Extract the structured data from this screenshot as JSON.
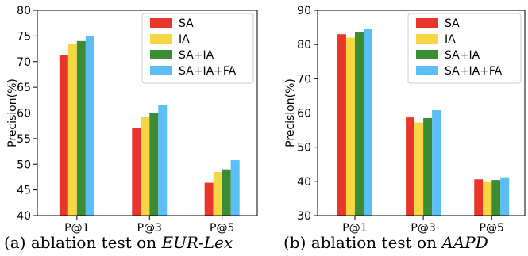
{
  "chart_data": [
    {
      "type": "bar",
      "title": "",
      "caption": "(a) ablation test on ",
      "caption_italic": "EUR-Lex",
      "categories": [
        "P@1",
        "P@3",
        "P@5"
      ],
      "ylabel": "Precision(%)",
      "xlabel": "",
      "ylim": [
        40,
        80
      ],
      "yticks": [
        40,
        45,
        50,
        55,
        60,
        65,
        70,
        75,
        80
      ],
      "legend_position": "top-right",
      "series": [
        {
          "name": "SA",
          "color": "#e8372a",
          "values": [
            71.2,
            57.1,
            46.4
          ]
        },
        {
          "name": "IA",
          "color": "#f6d743",
          "values": [
            73.4,
            59.2,
            48.5
          ]
        },
        {
          "name": "SA+IA",
          "color": "#3a8c35",
          "values": [
            74.0,
            60.0,
            49.0
          ]
        },
        {
          "name": "SA+IA+FA",
          "color": "#5bbef4",
          "values": [
            75.0,
            61.5,
            50.8
          ]
        }
      ]
    },
    {
      "type": "bar",
      "title": "",
      "caption": "(b) ablation test on ",
      "caption_italic": "AAPD",
      "categories": [
        "P@1",
        "P@3",
        "P@5"
      ],
      "ylabel": "Precision(%)",
      "xlabel": "",
      "ylim": [
        30,
        90
      ],
      "yticks": [
        30,
        40,
        50,
        60,
        70,
        80,
        90
      ],
      "legend_position": "top-right",
      "series": [
        {
          "name": "SA",
          "color": "#e8372a",
          "values": [
            83.0,
            58.7,
            40.6
          ]
        },
        {
          "name": "IA",
          "color": "#f6d743",
          "values": [
            82.0,
            57.2,
            39.8
          ]
        },
        {
          "name": "SA+IA",
          "color": "#3a8c35",
          "values": [
            83.7,
            58.5,
            40.4
          ]
        },
        {
          "name": "SA+IA+FA",
          "color": "#5bbef4",
          "values": [
            84.5,
            60.8,
            41.2
          ]
        }
      ]
    }
  ]
}
